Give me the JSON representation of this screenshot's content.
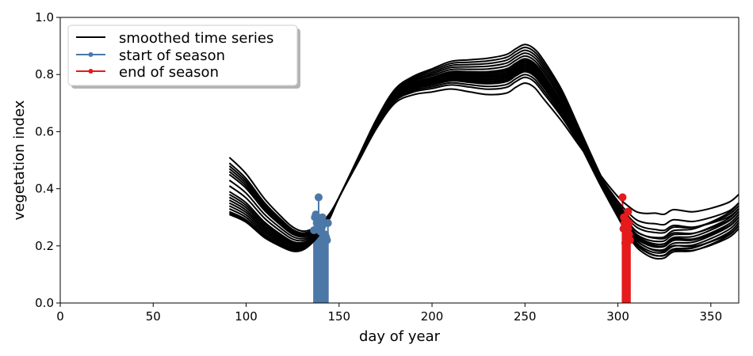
{
  "chart_data": {
    "type": "line",
    "xlabel": "day of year",
    "ylabel": "vegetation index",
    "xlim": [
      0,
      365
    ],
    "ylim": [
      0,
      1.0
    ],
    "xticks": [
      0,
      50,
      100,
      150,
      200,
      250,
      300,
      350
    ],
    "yticks": [
      0.0,
      0.2,
      0.4,
      0.6,
      0.8,
      1.0
    ],
    "grid": false,
    "legend": {
      "placement": "top-left",
      "entries": [
        {
          "label": "smoothed time series",
          "color": "#000000"
        },
        {
          "label": "start of season",
          "color": "#4c78a8"
        },
        {
          "label": "end of season",
          "color": "#e41a1c"
        }
      ]
    },
    "colors": {
      "series": "#000000",
      "sos": "#4c78a8",
      "eos": "#e41a1c"
    },
    "series_template": {
      "x": [
        91,
        100,
        110,
        120,
        125,
        130,
        135,
        140,
        145,
        150,
        160,
        170,
        180,
        190,
        200,
        210,
        220,
        230,
        240,
        245,
        250,
        255,
        260,
        270,
        280,
        290,
        300,
        305,
        310,
        315,
        320,
        325,
        330,
        340,
        350,
        360,
        365
      ],
      "y": [
        0.46,
        0.41,
        0.33,
        0.27,
        0.245,
        0.235,
        0.245,
        0.27,
        0.31,
        0.37,
        0.5,
        0.63,
        0.73,
        0.77,
        0.79,
        0.81,
        0.81,
        0.81,
        0.82,
        0.84,
        0.855,
        0.84,
        0.8,
        0.7,
        0.57,
        0.44,
        0.32,
        0.27,
        0.23,
        0.21,
        0.2,
        0.2,
        0.22,
        0.22,
        0.24,
        0.27,
        0.3
      ]
    },
    "series": [
      {
        "start_y": 0.51,
        "peak_y": 0.905,
        "low_y": 0.21,
        "end_y": 0.33,
        "sos": {
          "x": 136.5,
          "y": 0.255
        },
        "eos": {
          "x": 303.5,
          "y": 0.3
        }
      },
      {
        "start_y": 0.49,
        "peak_y": 0.895,
        "low_y": 0.22,
        "end_y": 0.35,
        "sos": {
          "x": 137,
          "y": 0.3
        },
        "eos": {
          "x": 304,
          "y": 0.29
        }
      },
      {
        "start_y": 0.48,
        "peak_y": 0.885,
        "low_y": 0.2,
        "end_y": 0.32,
        "sos": {
          "x": 138,
          "y": 0.28
        },
        "eos": {
          "x": 304.5,
          "y": 0.24
        }
      },
      {
        "start_y": 0.47,
        "peak_y": 0.875,
        "low_y": 0.19,
        "end_y": 0.31,
        "sos": {
          "x": 139,
          "y": 0.37
        },
        "eos": {
          "x": 305,
          "y": 0.27
        }
      },
      {
        "start_y": 0.46,
        "peak_y": 0.865,
        "low_y": 0.2,
        "end_y": 0.3,
        "sos": {
          "x": 139.5,
          "y": 0.255
        },
        "eos": {
          "x": 305.5,
          "y": 0.32
        }
      },
      {
        "start_y": 0.45,
        "peak_y": 0.855,
        "low_y": 0.18,
        "end_y": 0.3,
        "sos": {
          "x": 140,
          "y": 0.29
        },
        "eos": {
          "x": 306,
          "y": 0.28
        }
      },
      {
        "start_y": 0.43,
        "peak_y": 0.85,
        "low_y": 0.17,
        "end_y": 0.29,
        "sos": {
          "x": 141,
          "y": 0.3
        },
        "eos": {
          "x": 306.5,
          "y": 0.22
        }
      },
      {
        "start_y": 0.41,
        "peak_y": 0.845,
        "low_y": 0.16,
        "end_y": 0.28,
        "sos": {
          "x": 141.5,
          "y": 0.24
        },
        "eos": {
          "x": 304,
          "y": 0.21
        }
      },
      {
        "start_y": 0.39,
        "peak_y": 0.84,
        "low_y": 0.16,
        "end_y": 0.28,
        "sos": {
          "x": 142,
          "y": 0.28
        },
        "eos": {
          "x": 303,
          "y": 0.26
        }
      },
      {
        "start_y": 0.38,
        "peak_y": 0.835,
        "low_y": 0.15,
        "end_y": 0.27,
        "sos": {
          "x": 143,
          "y": 0.23
        },
        "eos": {
          "x": 305,
          "y": 0.25
        }
      },
      {
        "start_y": 0.37,
        "peak_y": 0.83,
        "low_y": 0.17,
        "end_y": 0.26,
        "sos": {
          "x": 143.5,
          "y": 0.22
        },
        "eos": {
          "x": 302.5,
          "y": 0.37
        }
      },
      {
        "start_y": 0.36,
        "peak_y": 0.825,
        "low_y": 0.19,
        "end_y": 0.27,
        "sos": {
          "x": 141,
          "y": 0.27
        },
        "eos": {
          "x": 306,
          "y": 0.24
        }
      },
      {
        "start_y": 0.35,
        "peak_y": 0.82,
        "low_y": 0.21,
        "end_y": 0.3,
        "sos": {
          "x": 140.5,
          "y": 0.26
        },
        "eos": {
          "x": 304.5,
          "y": 0.29
        }
      },
      {
        "start_y": 0.34,
        "peak_y": 0.815,
        "low_y": 0.23,
        "end_y": 0.32,
        "sos": {
          "x": 142.5,
          "y": 0.24
        },
        "eos": {
          "x": 305.5,
          "y": 0.26
        }
      },
      {
        "start_y": 0.33,
        "peak_y": 0.81,
        "low_y": 0.25,
        "end_y": 0.34,
        "sos": {
          "x": 138.5,
          "y": 0.27
        },
        "eos": {
          "x": 303.5,
          "y": 0.28
        }
      },
      {
        "start_y": 0.32,
        "peak_y": 0.8,
        "low_y": 0.27,
        "end_y": 0.33,
        "sos": {
          "x": 144,
          "y": 0.28
        },
        "eos": {
          "x": 304,
          "y": 0.27
        }
      },
      {
        "start_y": 0.315,
        "peak_y": 0.79,
        "low_y": 0.29,
        "end_y": 0.35,
        "sos": {
          "x": 140,
          "y": 0.25
        },
        "eos": {
          "x": 305,
          "y": 0.25
        }
      },
      {
        "start_y": 0.31,
        "peak_y": 0.77,
        "low_y": 0.33,
        "end_y": 0.38,
        "sos": {
          "x": 137.5,
          "y": 0.31
        },
        "eos": {
          "x": 303.2,
          "y": 0.3
        }
      }
    ]
  }
}
